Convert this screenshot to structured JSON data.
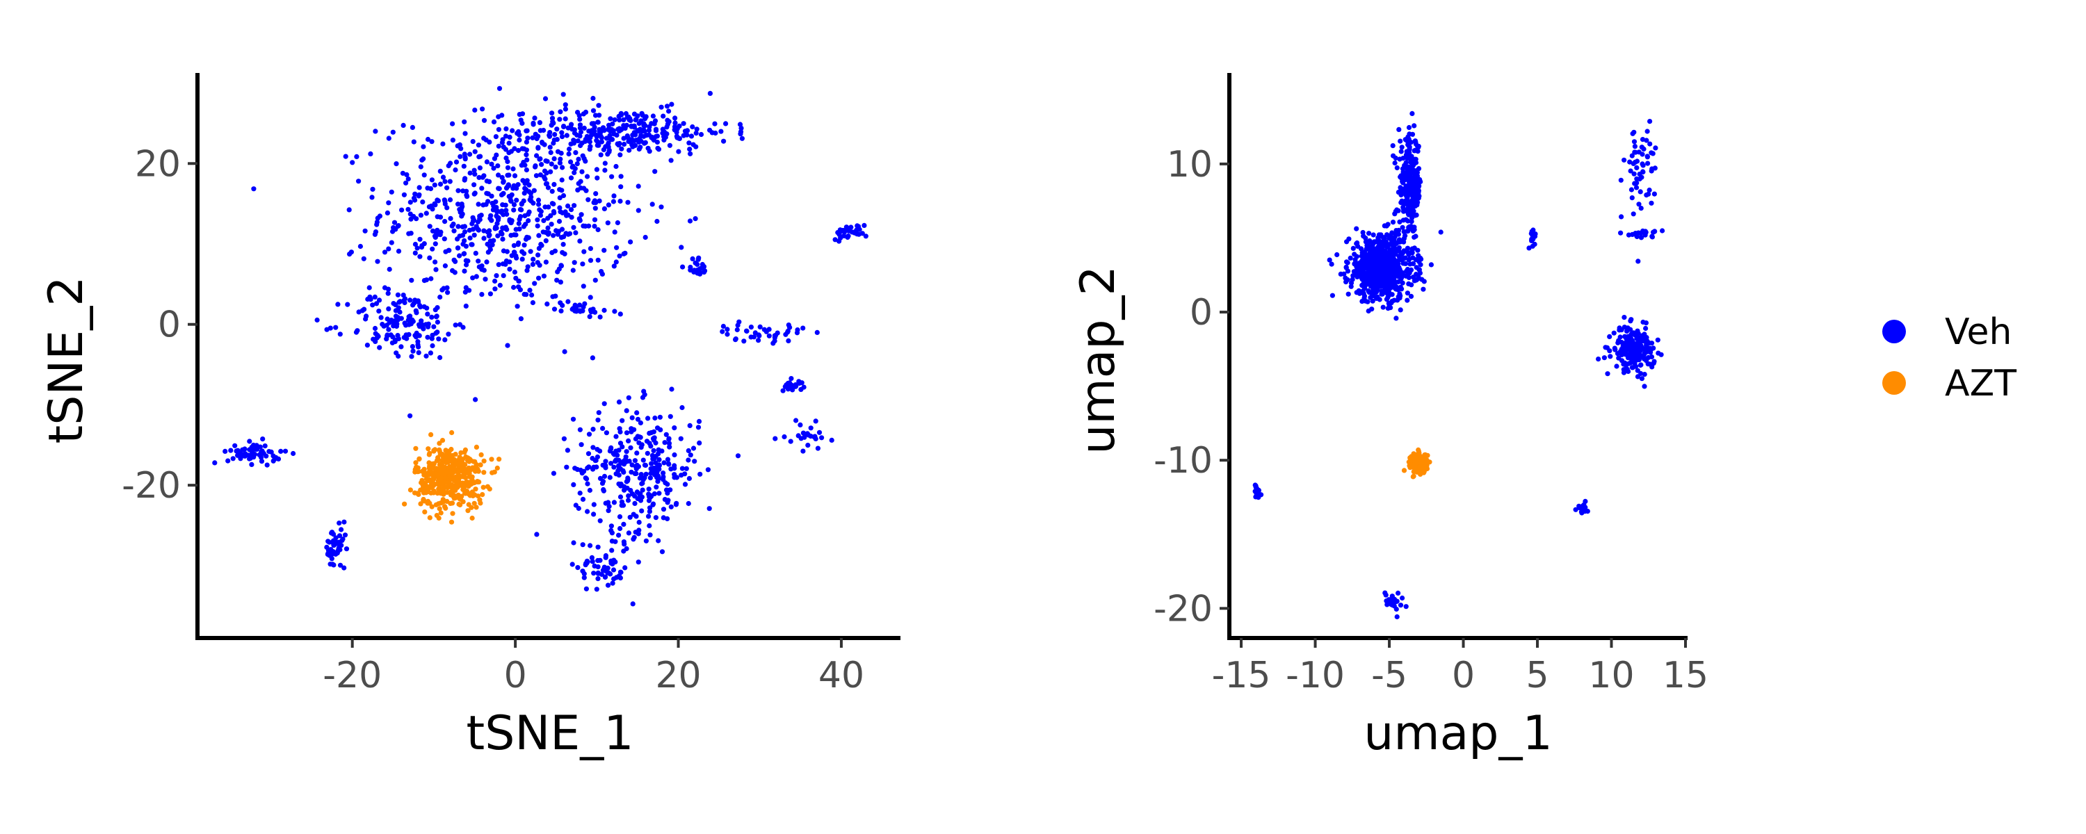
{
  "legend": {
    "items": [
      {
        "label": "Veh",
        "color": "#0000ff"
      },
      {
        "label": "AZT",
        "color": "#ff8c00"
      }
    ]
  },
  "chart_data": [
    {
      "type": "scatter",
      "xlabel": "tSNE_1",
      "ylabel": "tSNE_2",
      "xlim": [
        -39,
        47
      ],
      "ylim": [
        -39,
        31
      ],
      "x_ticks": [
        {
          "value": -20,
          "label": "-20"
        },
        {
          "value": 0,
          "label": "0"
        },
        {
          "value": 20,
          "label": "20"
        },
        {
          "value": 40,
          "label": "40"
        }
      ],
      "y_ticks": [
        {
          "value": -20,
          "label": "-20"
        },
        {
          "value": 0,
          "label": "0"
        },
        {
          "value": 20,
          "label": "20"
        }
      ],
      "grid": false,
      "series": [
        {
          "name": "Veh",
          "color": "#0000ff",
          "clusters": [
            {
              "center": [
                -1,
                14
              ],
              "spread": [
                14,
                11
              ],
              "n": 700
            },
            {
              "center": [
                13,
                24
              ],
              "spread": [
                12,
                2.5
              ],
              "n": 260
            },
            {
              "center": [
                -14,
                0
              ],
              "spread": [
                6,
                4
              ],
              "n": 140
            },
            {
              "center": [
                15,
                -18
              ],
              "spread": [
                7,
                7
              ],
              "n": 320
            },
            {
              "center": [
                11,
                -30
              ],
              "spread": [
                3,
                3
              ],
              "n": 60
            },
            {
              "center": [
                -32,
                -16
              ],
              "spread": [
                3,
                1.2
              ],
              "n": 60
            },
            {
              "center": [
                -22,
                -28
              ],
              "spread": [
                1.2,
                2.5
              ],
              "n": 50
            },
            {
              "center": [
                41,
                11.5
              ],
              "spread": [
                2,
                0.8
              ],
              "n": 30
            },
            {
              "center": [
                22.5,
                7
              ],
              "spread": [
                1,
                1.5
              ],
              "n": 20
            },
            {
              "center": [
                30,
                -1
              ],
              "spread": [
                5,
                1
              ],
              "n": 40
            },
            {
              "center": [
                34,
                -7.5
              ],
              "spread": [
                1.2,
                0.8
              ],
              "n": 20
            },
            {
              "center": [
                36,
                -14
              ],
              "spread": [
                2.5,
                1.5
              ],
              "n": 25
            },
            {
              "center": [
                8,
                2
              ],
              "spread": [
                3,
                0.8
              ],
              "n": 25
            }
          ]
        },
        {
          "name": "AZT",
          "color": "#ff8c00",
          "clusters": [
            {
              "center": [
                -8,
                -19
              ],
              "spread": [
                3.8,
                3.5
              ],
              "n": 420
            }
          ]
        }
      ]
    },
    {
      "type": "scatter",
      "xlabel": "umap_1",
      "ylabel": "umap_2",
      "xlim": [
        -15.8,
        15
      ],
      "ylim": [
        -22,
        16
      ],
      "x_ticks": [
        {
          "value": -15,
          "label": "-15"
        },
        {
          "value": -10,
          "label": "-10"
        },
        {
          "value": -5,
          "label": "-5"
        },
        {
          "value": 0,
          "label": "0"
        },
        {
          "value": 5,
          "label": "5"
        },
        {
          "value": 10,
          "label": "10"
        },
        {
          "value": 15,
          "label": "15"
        }
      ],
      "y_ticks": [
        {
          "value": -20,
          "label": "-20"
        },
        {
          "value": -10,
          "label": "-10"
        },
        {
          "value": 0,
          "label": "0"
        },
        {
          "value": 10,
          "label": "10"
        }
      ],
      "grid": false,
      "series": [
        {
          "name": "Veh",
          "color": "#0000ff",
          "clusters": [
            {
              "center": [
                -5.5,
                3
              ],
              "spread": [
                2,
                2
              ],
              "n": 700
            },
            {
              "center": [
                -3.6,
                8.5
              ],
              "spread": [
                0.7,
                3
              ],
              "n": 250
            },
            {
              "center": [
                11.5,
                -2.5
              ],
              "spread": [
                1.3,
                1.3
              ],
              "n": 200
            },
            {
              "center": [
                12,
                9.5
              ],
              "spread": [
                1,
                3.5
              ],
              "n": 60
            },
            {
              "center": [
                12,
                5.3
              ],
              "spread": [
                1,
                0.2
              ],
              "n": 20
            },
            {
              "center": [
                4.7,
                5
              ],
              "spread": [
                0.2,
                0.5
              ],
              "n": 15
            },
            {
              "center": [
                -14,
                -12
              ],
              "spread": [
                0.3,
                0.5
              ],
              "n": 15
            },
            {
              "center": [
                8,
                -13.2
              ],
              "spread": [
                0.4,
                0.4
              ],
              "n": 20
            },
            {
              "center": [
                -4.7,
                -19.5
              ],
              "spread": [
                0.6,
                0.6
              ],
              "n": 25
            }
          ]
        },
        {
          "name": "AZT",
          "color": "#ff8c00",
          "clusters": [
            {
              "center": [
                -3,
                -10.2
              ],
              "spread": [
                0.5,
                0.6
              ],
              "n": 200
            }
          ]
        }
      ]
    }
  ]
}
